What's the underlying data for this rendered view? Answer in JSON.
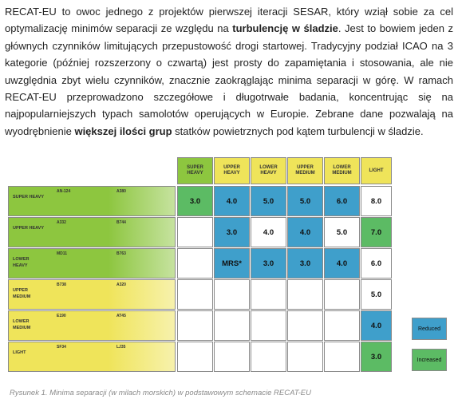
{
  "paragraph": [
    {
      "text": "RECAT-EU to owoc jednego z projektów pierwszej iteracji SESAR, który wziął sobie za cel optymalizację minimów separacji ze względu na ",
      "bold": false
    },
    {
      "text": "turbulencję w śladzie",
      "bold": true
    },
    {
      "text": ". Jest to bowiem jeden z głównych czynników limitujących przepustowość drogi startowej. Tradycyjny podział ICAO na 3 kategorie (później rozszerzony o czwartą) jest prosty do zapamiętania i stosowania, ale nie uwzględnia zbyt wielu czynników, znacznie zaokrąglając minima separacji w górę. W ramach RECAT-EU przeprowadzono szczegółowe i długotrwałe badania, koncentrując się na najpopularniejszych typach samolotów operujących w Europie. Zebrane dane pozwalają na wyodrębnienie ",
      "bold": false
    },
    {
      "text": "większej ilości grup",
      "bold": true
    },
    {
      "text": " statków powietrznych pod kątem turbulencji w śladzie.",
      "bold": false
    }
  ],
  "figure": {
    "column_headers": [
      {
        "label": "SUPER HEAVY",
        "fill": "#8dc63f"
      },
      {
        "label": "UPPER HEAVY",
        "fill": "#efe45a"
      },
      {
        "label": "LOWER HEAVY",
        "fill": "#efe45a"
      },
      {
        "label": "UPPER MEDIUM",
        "fill": "#efe45a"
      },
      {
        "label": "LOWER MEDIUM",
        "fill": "#efe45a"
      },
      {
        "label": "LIGHT",
        "fill": "#efe45a"
      }
    ],
    "rows": [
      {
        "label": "SUPER HEAVY",
        "fill": "#8dc63f",
        "aircraft": [
          "AN-124",
          "A380"
        ],
        "cells": [
          {
            "text": "3.0",
            "fill": "#5cbb64"
          },
          {
            "text": "4.0",
            "fill": "#3f9fcb"
          },
          {
            "text": "5.0",
            "fill": "#3f9fcb"
          },
          {
            "text": "5.0",
            "fill": "#3f9fcb"
          },
          {
            "text": "6.0",
            "fill": "#3f9fcb"
          },
          {
            "text": "8.0",
            "fill": "#ffffff"
          }
        ]
      },
      {
        "label": "UPPER HEAVY",
        "fill": "#8dc63f",
        "aircraft": [
          "A332",
          "B744"
        ],
        "cells": [
          null,
          {
            "text": "3.0",
            "fill": "#3f9fcb"
          },
          {
            "text": "4.0",
            "fill": "#ffffff"
          },
          {
            "text": "4.0",
            "fill": "#3f9fcb"
          },
          {
            "text": "5.0",
            "fill": "#ffffff"
          },
          {
            "text": "7.0",
            "fill": "#5cbb64"
          }
        ]
      },
      {
        "label": "LOWER HEAVY",
        "fill": "#8dc63f",
        "aircraft": [
          "MD11",
          "B763"
        ],
        "cells": [
          null,
          {
            "text": "MRS*",
            "fill": "#3f9fcb"
          },
          {
            "text": "3.0",
            "fill": "#3f9fcb"
          },
          {
            "text": "3.0",
            "fill": "#3f9fcb"
          },
          {
            "text": "4.0",
            "fill": "#3f9fcb"
          },
          {
            "text": "6.0",
            "fill": "#ffffff"
          }
        ]
      },
      {
        "label": "UPPER MEDIUM",
        "fill": "#efe45a",
        "aircraft": [
          "B738",
          "A320"
        ],
        "cells": [
          null,
          null,
          null,
          null,
          null,
          {
            "text": "5.0",
            "fill": "#ffffff"
          }
        ]
      },
      {
        "label": "LOWER MEDIUM",
        "fill": "#efe45a",
        "aircraft": [
          "E190",
          "AT45"
        ],
        "cells": [
          null,
          null,
          null,
          null,
          null,
          {
            "text": "4.0",
            "fill": "#3f9fcb"
          }
        ]
      },
      {
        "label": "LIGHT",
        "fill": "#efe45a",
        "aircraft": [
          "SF34",
          "LJ35"
        ],
        "cells": [
          null,
          null,
          null,
          null,
          null,
          {
            "text": "3.0",
            "fill": "#5cbb64"
          }
        ]
      }
    ],
    "legend": [
      {
        "label": "Reduced",
        "fill": "#3f9fcb"
      },
      {
        "label": "Increased",
        "fill": "#5cbb64"
      }
    ]
  },
  "caption": "Rysunek 1. Minima separacji (w milach morskich) w podstawowym schemacie RECAT-EU"
}
